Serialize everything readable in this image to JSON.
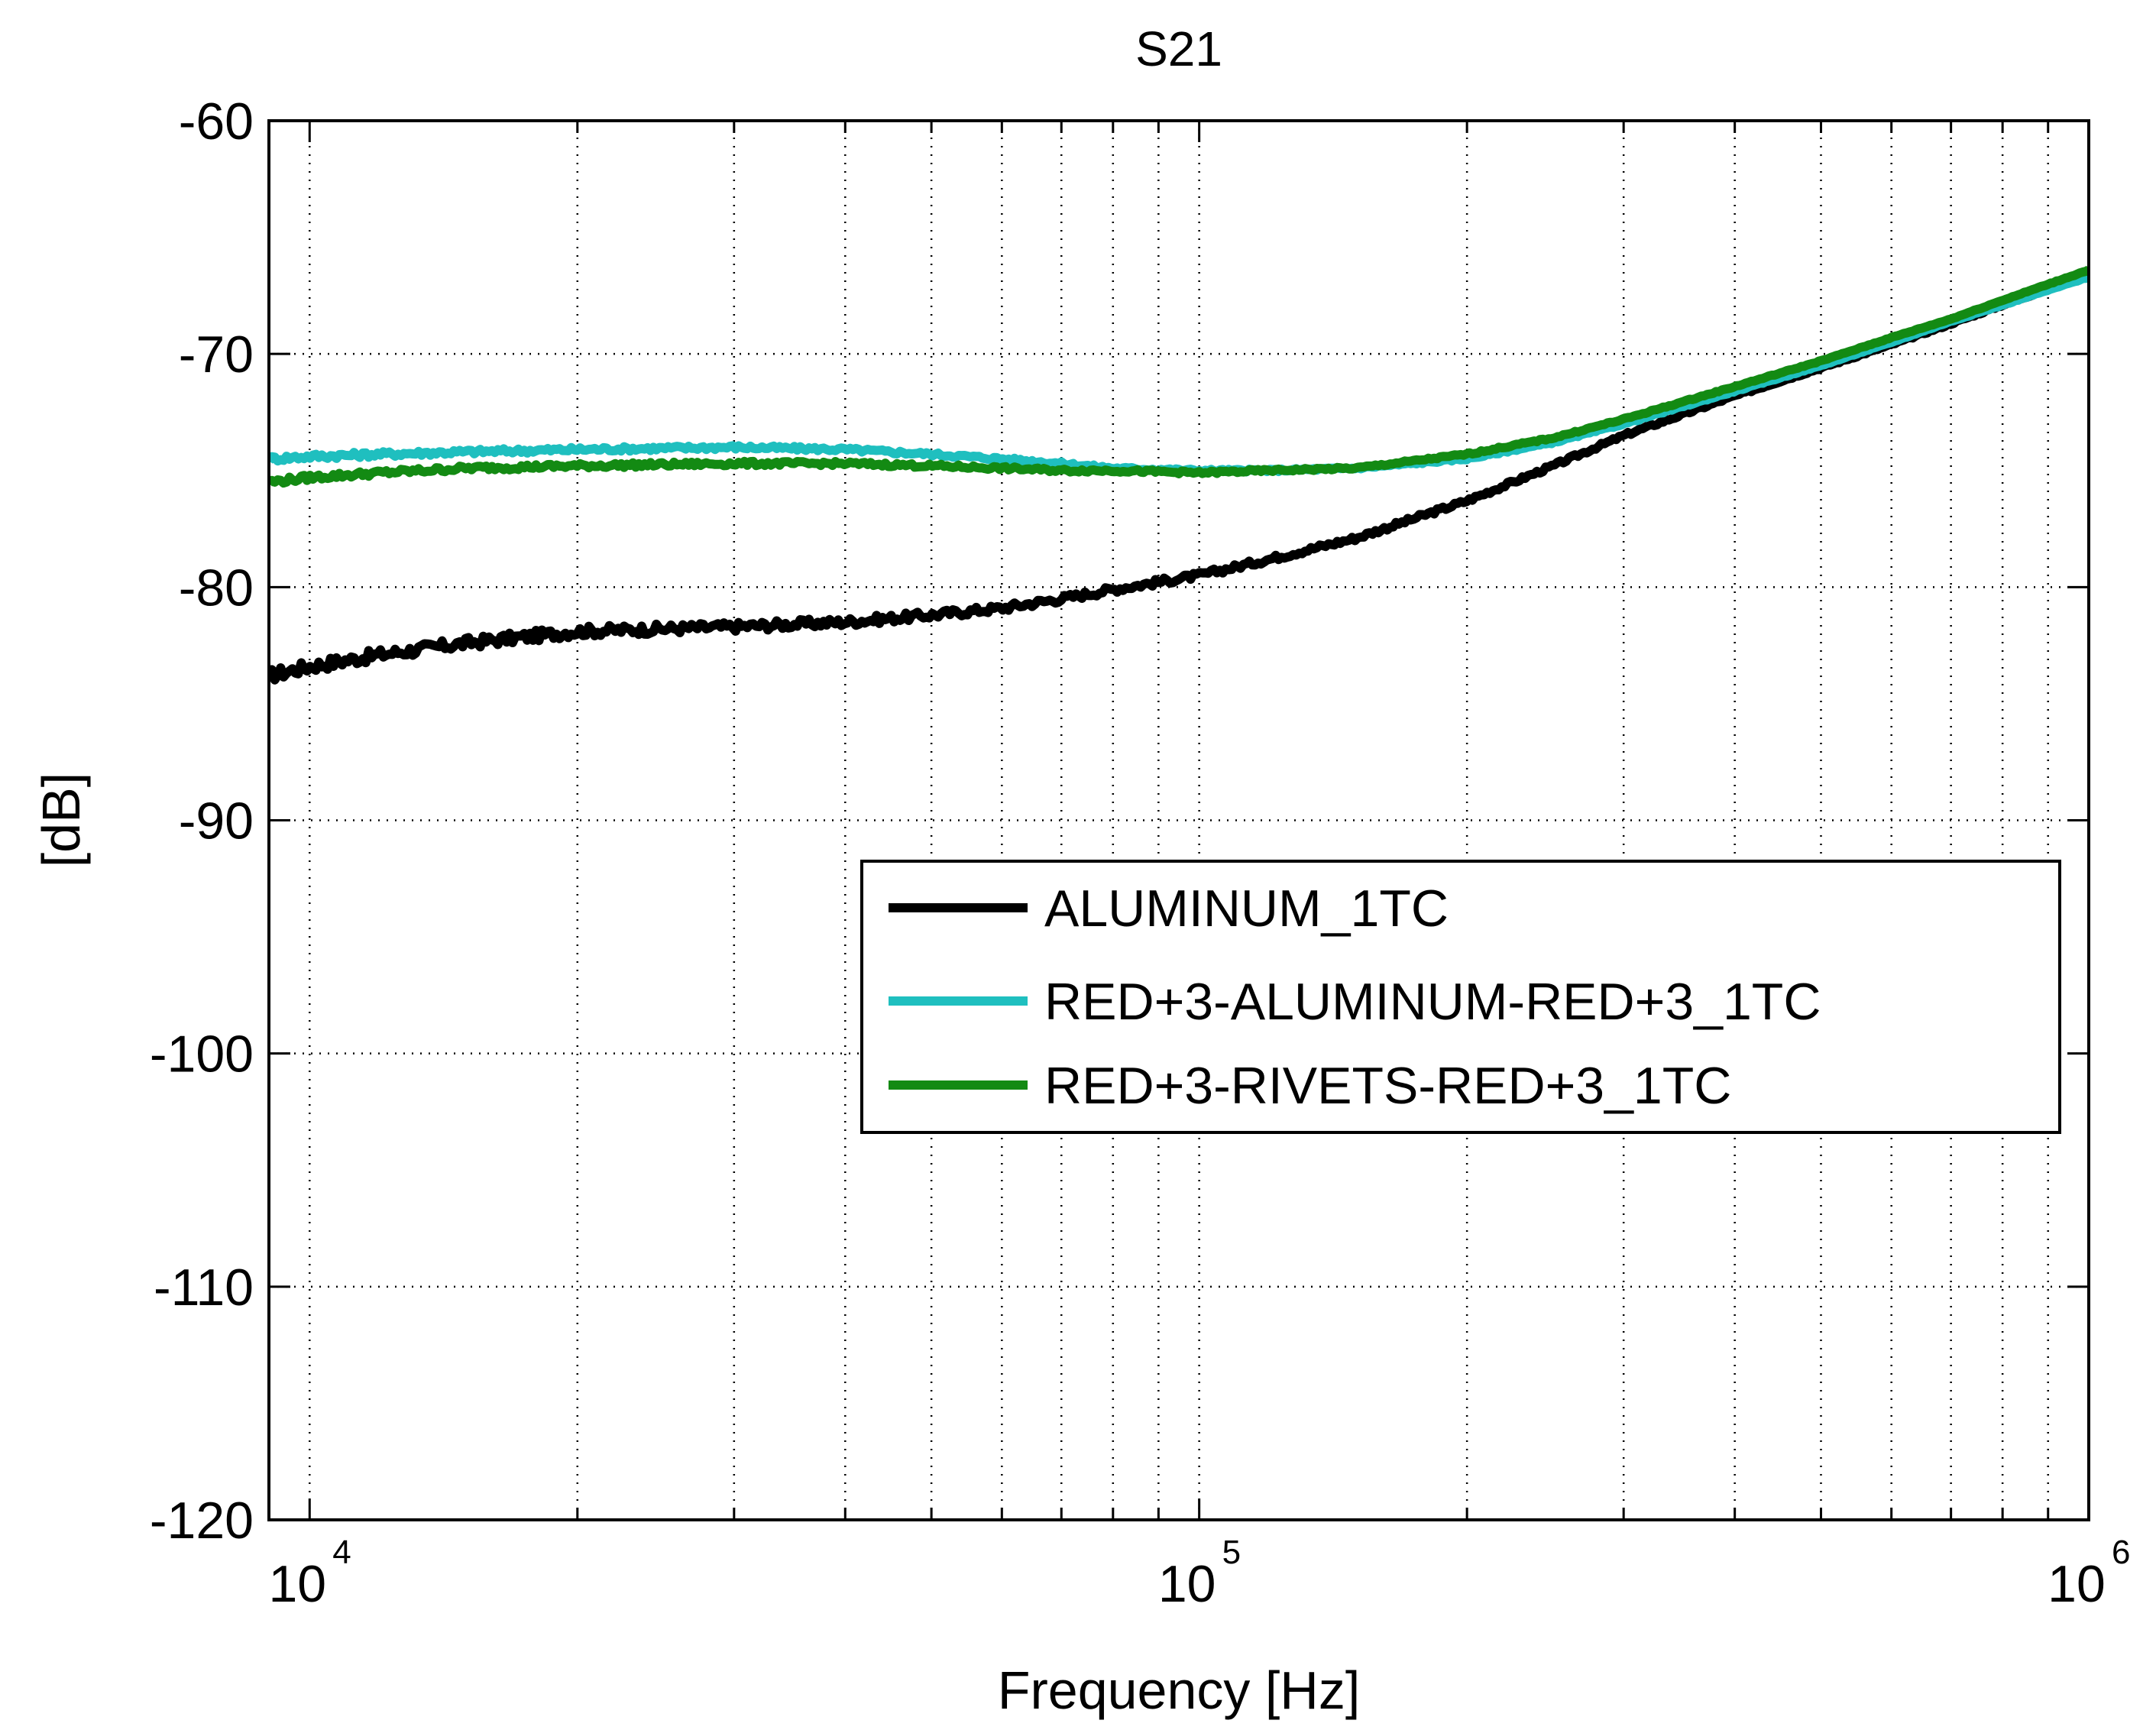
{
  "chart_data": {
    "type": "line",
    "title": "S21",
    "xlabel": "Frequency [Hz]",
    "ylabel": "[dB]",
    "x_scale": "log",
    "xlim": [
      9000,
      1000000
    ],
    "ylim": [
      -120,
      -60
    ],
    "grid": true,
    "grid_style": "dotted",
    "x_ticks": [
      {
        "value": 10000,
        "base": "10",
        "exponent": "4"
      },
      {
        "value": 100000,
        "base": "10",
        "exponent": "5"
      },
      {
        "value": 1000000,
        "base": "10",
        "exponent": "6"
      }
    ],
    "y_ticks": [
      {
        "value": -60,
        "label": "-60"
      },
      {
        "value": -70,
        "label": "-70"
      },
      {
        "value": -80,
        "label": "-80"
      },
      {
        "value": -90,
        "label": "-90"
      },
      {
        "value": -100,
        "label": "-100"
      },
      {
        "value": -110,
        "label": "-110"
      },
      {
        "value": -120,
        "label": "-120"
      }
    ],
    "legend_position": "center-right",
    "series": [
      {
        "name": "ALUMINUM_1TC",
        "color": "#000000",
        "x": [
          9000,
          10000,
          12000,
          15000,
          20000,
          30000,
          40000,
          50000,
          60000,
          70000,
          80000,
          100000,
          120000,
          150000,
          200000,
          250000,
          300000,
          400000,
          500000,
          600000,
          700000,
          800000,
          1000000
        ],
        "y": [
          -83.8,
          -83.4,
          -82.9,
          -82.4,
          -81.9,
          -81.7,
          -81.5,
          -81.2,
          -80.9,
          -80.5,
          -80.1,
          -79.5,
          -78.8,
          -77.9,
          -76.3,
          -74.8,
          -73.5,
          -71.8,
          -70.6,
          -69.6,
          -68.7,
          -67.9,
          -66.6
        ]
      },
      {
        "name": "RED+3-ALUMINUM-RED+3_1TC",
        "color": "#1fbfbf",
        "x": [
          9000,
          10000,
          12000,
          15000,
          20000,
          30000,
          40000,
          50000,
          60000,
          70000,
          80000,
          100000,
          120000,
          150000,
          200000,
          250000,
          300000,
          400000,
          500000,
          600000,
          700000,
          800000,
          1000000
        ],
        "y": [
          -74.5,
          -74.4,
          -74.3,
          -74.2,
          -74.1,
          -74.0,
          -74.1,
          -74.3,
          -74.5,
          -74.7,
          -74.9,
          -75.0,
          -75.0,
          -74.9,
          -74.5,
          -73.8,
          -73.0,
          -71.6,
          -70.5,
          -69.5,
          -68.6,
          -67.9,
          -66.7
        ]
      },
      {
        "name": "RED+3-RIVETS-RED+3_1TC",
        "color": "#138a13",
        "x": [
          9000,
          10000,
          12000,
          15000,
          20000,
          30000,
          40000,
          50000,
          60000,
          70000,
          80000,
          100000,
          120000,
          150000,
          200000,
          250000,
          300000,
          400000,
          500000,
          600000,
          700000,
          800000,
          1000000
        ],
        "y": [
          -75.5,
          -75.3,
          -75.1,
          -74.9,
          -74.8,
          -74.7,
          -74.7,
          -74.8,
          -74.9,
          -75.0,
          -75.0,
          -75.1,
          -75.0,
          -74.9,
          -74.3,
          -73.6,
          -72.8,
          -71.4,
          -70.3,
          -69.3,
          -68.5,
          -67.7,
          -66.4
        ]
      }
    ]
  }
}
